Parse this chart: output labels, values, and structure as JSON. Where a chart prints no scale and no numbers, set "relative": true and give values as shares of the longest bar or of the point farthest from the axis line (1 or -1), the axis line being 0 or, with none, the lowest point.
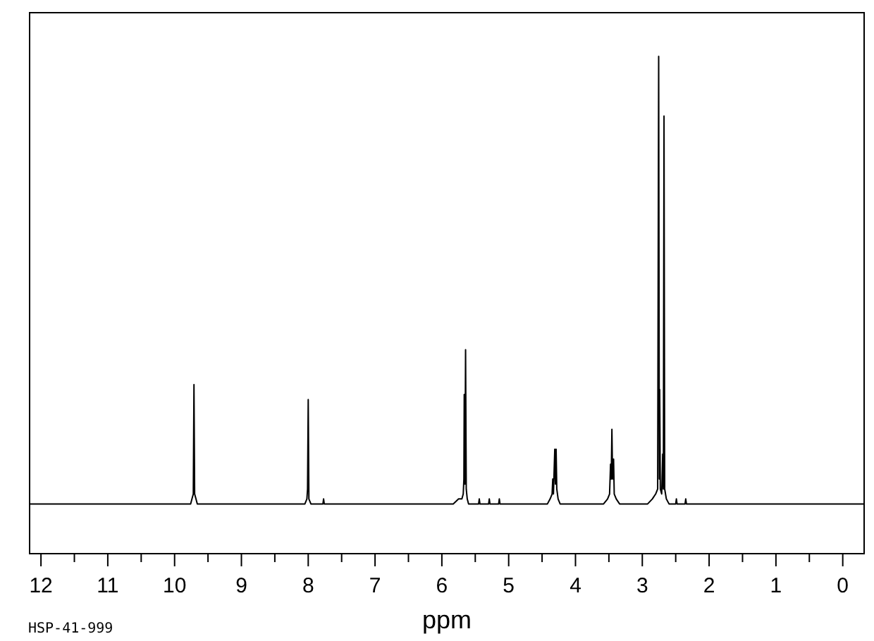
{
  "chart_data": {
    "type": "line",
    "xlabel": "ppm",
    "annotations": [
      "HSP-41-999"
    ],
    "relative": true,
    "color": "#000000",
    "xlim": [
      12.17,
      -0.32
    ],
    "xticks": [
      12,
      {
        "value": 11.5,
        "label": null
      },
      11,
      {
        "value": 10.5,
        "label": null
      },
      10,
      {
        "value": 9.5,
        "label": null
      },
      9,
      {
        "value": 8.5,
        "label": null
      },
      8,
      {
        "value": 7.5,
        "label": null
      },
      7,
      {
        "value": 6.5,
        "label": null
      },
      6,
      {
        "value": 5.5,
        "label": null
      },
      5,
      {
        "value": 4.5,
        "label": null
      },
      4,
      {
        "value": 3.5,
        "label": null
      },
      3,
      {
        "value": 2.5,
        "label": null
      },
      2,
      {
        "value": 1.5,
        "label": null
      },
      1,
      {
        "value": 0.5,
        "label": null
      },
      0
    ],
    "x": [
      12.17,
      9.76,
      9.74,
      9.72,
      9.71,
      9.7,
      9.68,
      9.66,
      8.05,
      8.02,
      8.01,
      8.0,
      7.99,
      7.96,
      7.78,
      7.77,
      7.76,
      5.83,
      5.75,
      5.7,
      5.68,
      5.67,
      5.665,
      5.655,
      5.645,
      5.635,
      5.62,
      5.6,
      5.45,
      5.44,
      5.43,
      5.3,
      5.29,
      5.28,
      5.15,
      5.14,
      5.13,
      4.42,
      4.38,
      4.35,
      4.34,
      4.33,
      4.31,
      4.3,
      4.29,
      4.28,
      4.26,
      4.23,
      3.58,
      3.52,
      3.49,
      3.475,
      3.465,
      3.455,
      3.445,
      3.43,
      3.42,
      3.39,
      3.34,
      2.92,
      2.85,
      2.8,
      2.77,
      2.755,
      2.745,
      2.74,
      2.73,
      2.71,
      2.695,
      2.685,
      2.675,
      2.665,
      2.64,
      2.6,
      2.5,
      2.49,
      2.48,
      2.36,
      2.35,
      2.34,
      -0.32
    ],
    "values": [
      0.1,
      0.1,
      0.11,
      0.12,
      0.34,
      0.12,
      0.11,
      0.1,
      0.1,
      0.11,
      0.13,
      0.31,
      0.11,
      0.1,
      0.1,
      0.11,
      0.1,
      0.1,
      0.11,
      0.11,
      0.12,
      0.15,
      0.32,
      0.14,
      0.41,
      0.13,
      0.11,
      0.1,
      0.1,
      0.11,
      0.1,
      0.1,
      0.11,
      0.1,
      0.1,
      0.11,
      0.1,
      0.1,
      0.11,
      0.12,
      0.15,
      0.12,
      0.21,
      0.14,
      0.21,
      0.13,
      0.11,
      0.1,
      0.1,
      0.11,
      0.12,
      0.18,
      0.15,
      0.25,
      0.15,
      0.19,
      0.12,
      0.11,
      0.1,
      0.1,
      0.11,
      0.12,
      0.13,
      1,
      0.15,
      0.33,
      0.13,
      0.12,
      0.2,
      0.13,
      0.88,
      0.13,
      0.11,
      0.1,
      0.1,
      0.11,
      0.1,
      0.1,
      0.11,
      0.1,
      0.1
    ]
  }
}
